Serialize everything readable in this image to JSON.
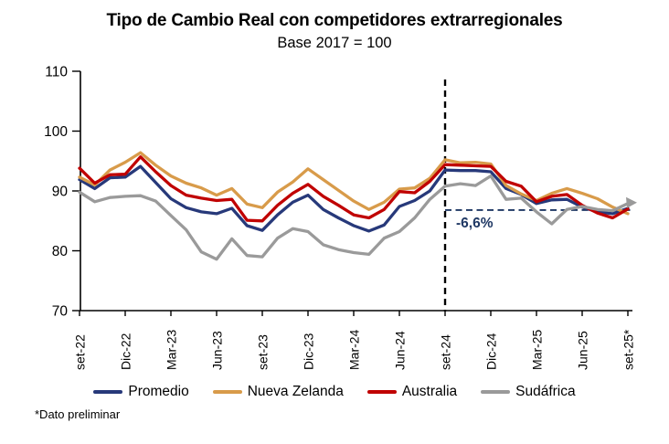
{
  "header": {
    "title": "Tipo de Cambio Real con competidores extrarregionales",
    "subtitle": "Base 2017 = 100"
  },
  "footnote": "*Dato preliminar",
  "annotation": {
    "label": "-6,6%",
    "color": "#1F3864"
  },
  "chart_data": {
    "type": "line",
    "title": "Tipo de Cambio Real con competidores extrarregionales",
    "subtitle": "Base 2017 = 100",
    "xlabel": "",
    "ylabel": "",
    "ylim": [
      70,
      110
    ],
    "y_ticks": [
      70,
      80,
      90,
      100,
      110
    ],
    "grid": false,
    "legend_position": "bottom",
    "months_total": 37,
    "x_tick_labels": [
      "set-22",
      "Dic-22",
      "Mar-23",
      "Jun-23",
      "set-23",
      "Dic-23",
      "Mar-24",
      "Jun-24",
      "set-24",
      "Dic-24",
      "Mar-25",
      "Jun-25",
      "set-25*"
    ],
    "x_tick_month_indices": [
      0,
      3,
      6,
      9,
      12,
      15,
      18,
      21,
      24,
      27,
      30,
      33,
      36
    ],
    "series": [
      {
        "name": "Promedio",
        "color": "#27397A",
        "values": [
          91.9,
          90.4,
          92.2,
          92.3,
          94.1,
          91.4,
          88.7,
          87.2,
          86.5,
          86.2,
          87.1,
          84.2,
          83.4,
          86.0,
          88.1,
          89.3,
          86.9,
          85.5,
          84.2,
          83.3,
          84.3,
          87.4,
          88.4,
          90.0,
          93.5,
          93.4,
          93.4,
          93.2,
          90.4,
          89.4,
          87.9,
          88.5,
          88.6,
          87.3,
          86.5,
          86.2,
          87.1
        ]
      },
      {
        "name": "Nueva Zelanda",
        "color": "#D89B4A",
        "values": [
          92.3,
          91.0,
          93.5,
          94.8,
          96.4,
          94.3,
          92.5,
          91.3,
          90.5,
          89.3,
          90.4,
          87.8,
          87.2,
          89.8,
          91.5,
          93.7,
          91.9,
          90.1,
          88.3,
          86.9,
          88.1,
          90.3,
          90.5,
          92.1,
          95.2,
          94.7,
          94.8,
          94.5,
          90.9,
          89.5,
          88.4,
          89.6,
          90.4,
          89.6,
          88.7,
          87.3,
          86.2
        ]
      },
      {
        "name": "Australia",
        "color": "#C00000",
        "values": [
          93.8,
          91.3,
          92.7,
          92.8,
          95.7,
          93.2,
          90.9,
          89.3,
          88.8,
          88.4,
          88.6,
          85.1,
          85.0,
          87.6,
          89.6,
          91.1,
          89.1,
          87.6,
          86.0,
          85.5,
          86.9,
          89.9,
          89.7,
          91.6,
          94.4,
          94.3,
          94.2,
          94.1,
          91.6,
          90.8,
          88.2,
          89.1,
          89.4,
          87.6,
          86.3,
          85.5,
          87.0
        ]
      },
      {
        "name": "Sudáfrica",
        "color": "#9A9A9A",
        "values": [
          89.8,
          88.2,
          88.9,
          89.1,
          89.2,
          88.3,
          85.9,
          83.5,
          79.8,
          78.6,
          82.0,
          79.2,
          79.0,
          82.1,
          83.7,
          83.2,
          81.0,
          80.2,
          79.7,
          79.4,
          82.1,
          83.2,
          85.5,
          88.6,
          90.8,
          91.2,
          90.9,
          92.5,
          88.6,
          88.8,
          86.5,
          84.5,
          86.9,
          87.4,
          86.9,
          86.7,
          87.9
        ]
      }
    ],
    "reference_vline": {
      "month_index": 24,
      "color": "#000000",
      "style": "dashed"
    },
    "reference_hline": {
      "value": 86.8,
      "from_month_index": 24,
      "color": "#1F3864",
      "style": "dashed",
      "label": "-6,6%"
    },
    "end_marker": {
      "series": "Sudáfrica",
      "shape": "arrowhead-right"
    }
  },
  "legend": {
    "items": [
      {
        "label": "Promedio"
      },
      {
        "label": "Nueva Zelanda"
      },
      {
        "label": "Australia"
      },
      {
        "label": "Sudáfrica"
      }
    ]
  }
}
